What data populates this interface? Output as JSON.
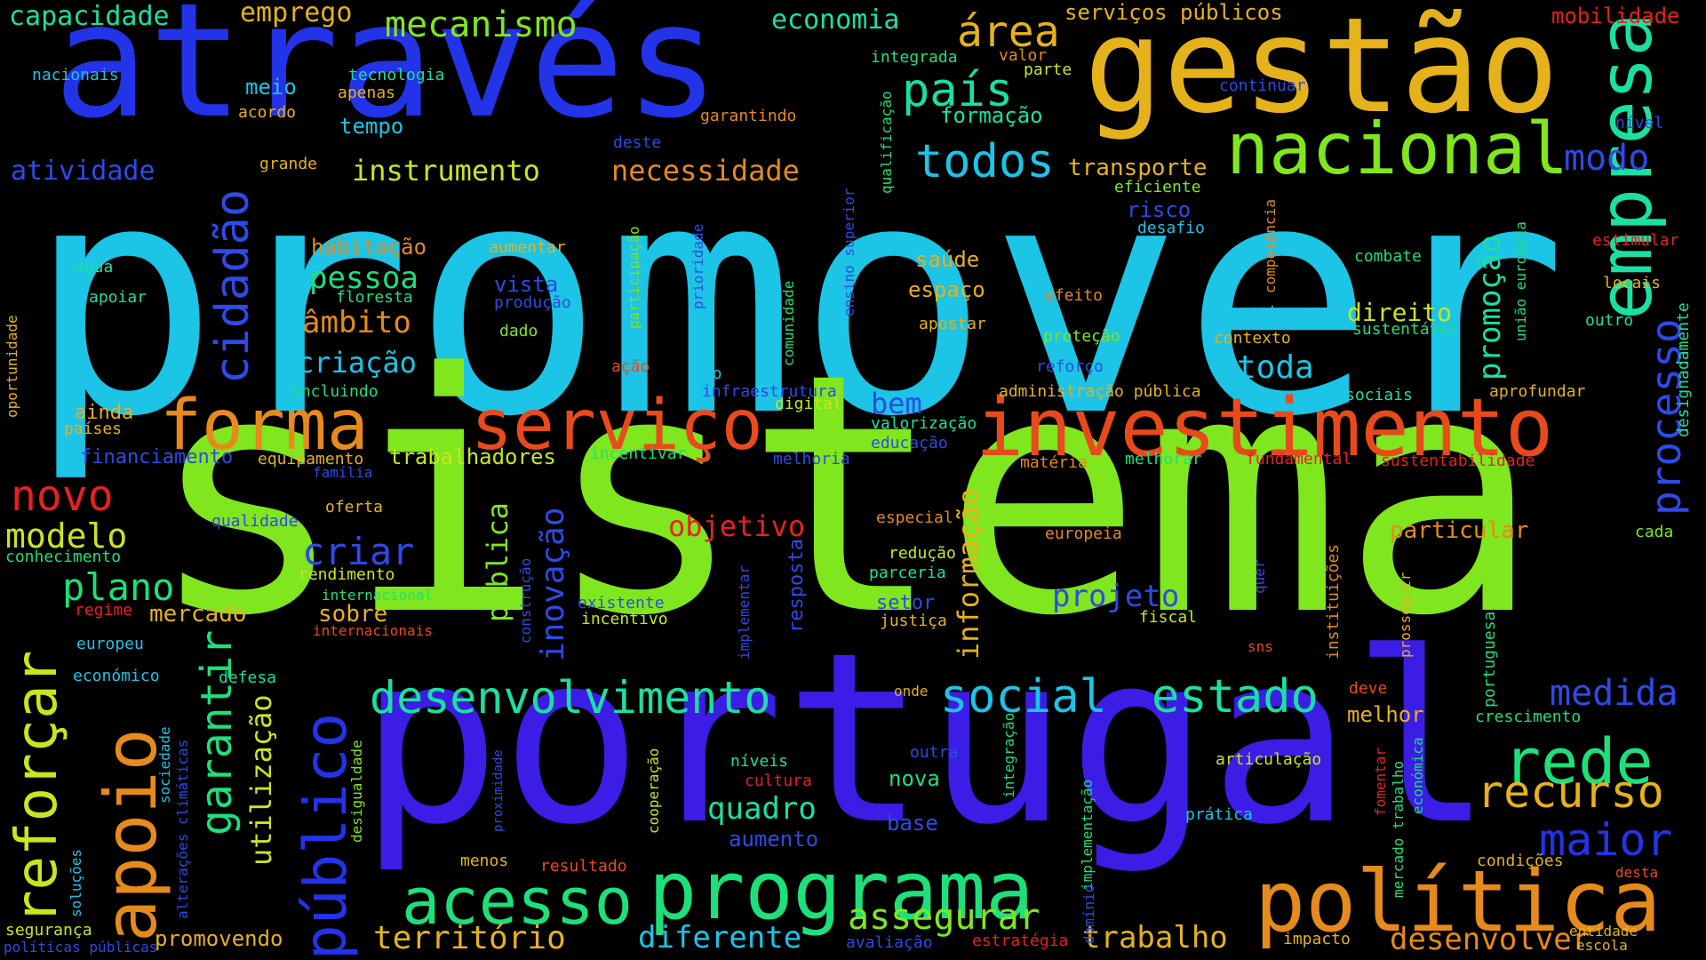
{
  "words": [
    {
      "text": "promover",
      "color": "#1cc4e6"
    },
    {
      "text": "sistema",
      "color": "#80e61e"
    },
    {
      "text": "portugal",
      "color": "#3b1de6"
    },
    {
      "text": "através",
      "color": "#2333e8"
    },
    {
      "text": "gestão",
      "color": "#e6b21c"
    },
    {
      "text": "investimento",
      "color": "#e84a1c"
    },
    {
      "text": "nacional",
      "color": "#80e61e"
    },
    {
      "text": "política",
      "color": "#e68a1c"
    },
    {
      "text": "programa",
      "color": "#1de07a"
    },
    {
      "text": "forma",
      "color": "#e68a1c"
    },
    {
      "text": "serviço",
      "color": "#e84a1c"
    },
    {
      "text": "empresa",
      "color": "#1ae0a0"
    },
    {
      "text": "apoio",
      "color": "#e68a1c"
    },
    {
      "text": "acesso",
      "color": "#1de07a"
    },
    {
      "text": "público",
      "color": "#2333e8"
    },
    {
      "text": "reforçar",
      "color": "#c8e61e"
    },
    {
      "text": "rede",
      "color": "#1de07a"
    },
    {
      "text": "desenvolvimento",
      "color": "#1ae0a0"
    },
    {
      "text": "todos",
      "color": "#1cc4e6"
    },
    {
      "text": "país",
      "color": "#1ae0a0"
    },
    {
      "text": "área",
      "color": "#e6b21c"
    },
    {
      "text": "social",
      "color": "#1cc4e6"
    },
    {
      "text": "estado",
      "color": "#1ae0a0"
    },
    {
      "text": "recurso",
      "color": "#e6b21c"
    },
    {
      "text": "maior",
      "color": "#2333e8"
    },
    {
      "text": "medida",
      "color": "#2e4ae8"
    },
    {
      "text": "cidadão",
      "color": "#2e4ae8"
    },
    {
      "text": "novo",
      "color": "#e82020"
    },
    {
      "text": "modelo",
      "color": "#c8e61e"
    },
    {
      "text": "garantir",
      "color": "#1de07a"
    },
    {
      "text": "assegurar",
      "color": "#80e61e"
    },
    {
      "text": "processo",
      "color": "#2e4ae8"
    },
    {
      "text": "território",
      "color": "#e6b21c"
    },
    {
      "text": "desenvolver",
      "color": "#e68a1c"
    },
    {
      "text": "mecanismo",
      "color": "#80e61e"
    },
    {
      "text": "plano",
      "color": "#1de07a"
    },
    {
      "text": "modo",
      "color": "#2e4ae8"
    },
    {
      "text": "instrumento",
      "color": "#c8e61e"
    },
    {
      "text": "necessidade",
      "color": "#e68a1c"
    },
    {
      "text": "inovação",
      "color": "#2e4ae8"
    },
    {
      "text": "criar",
      "color": "#2e4ae8"
    },
    {
      "text": "projeto",
      "color": "#2e4ae8"
    },
    {
      "text": "quadro",
      "color": "#1ae0a0"
    },
    {
      "text": "utilização",
      "color": "#c8e61e"
    },
    {
      "text": "trabalho",
      "color": "#e6b21c"
    },
    {
      "text": "diferente",
      "color": "#1cc4e6"
    },
    {
      "text": "capacidade",
      "color": "#1ae0a0"
    },
    {
      "text": "emprego",
      "color": "#e6b21c"
    },
    {
      "text": "economia",
      "color": "#1ae0a0"
    },
    {
      "text": "serviços públicos",
      "color": "#e6b21c"
    },
    {
      "text": "mobilidade",
      "color": "#e82020"
    },
    {
      "text": "atividade",
      "color": "#2e4ae8"
    },
    {
      "text": "pessoa",
      "color": "#1de07a"
    },
    {
      "text": "âmbito",
      "color": "#e68a1c"
    },
    {
      "text": "criação",
      "color": "#1cc4e6"
    },
    {
      "text": "habitação",
      "color": "#e68a1c"
    },
    {
      "text": "promoção",
      "color": "#1ae0a0"
    },
    {
      "text": "toda",
      "color": "#1cc4e6"
    },
    {
      "text": "direito",
      "color": "#c8e61e"
    },
    {
      "text": "transporte",
      "color": "#e6b21c"
    },
    {
      "text": "informação",
      "color": "#e6b21c"
    },
    {
      "text": "objetivo",
      "color": "#e82020"
    },
    {
      "text": "pública",
      "color": "#80e61e"
    },
    {
      "text": "bem",
      "color": "#2e4ae8"
    },
    {
      "text": "ainda",
      "color": "#e6b21c"
    },
    {
      "text": "trabalhadores",
      "color": "#c8e61e"
    },
    {
      "text": "financiamento",
      "color": "#2e4ae8"
    },
    {
      "text": "mercado",
      "color": "#e6b21c"
    },
    {
      "text": "sobre",
      "color": "#e6b21c"
    },
    {
      "text": "particular",
      "color": "#e68a1c"
    },
    {
      "text": "melhor",
      "color": "#e6b21c"
    },
    {
      "text": "nova",
      "color": "#1de07a"
    },
    {
      "text": "aumento",
      "color": "#2e4ae8"
    },
    {
      "text": "base",
      "color": "#2e4ae8"
    },
    {
      "text": "promovendo",
      "color": "#e6b21c"
    },
    {
      "text": "tempo",
      "color": "#1cc4e6"
    },
    {
      "text": "meio",
      "color": "#1cc4e6"
    },
    {
      "text": "formação",
      "color": "#1ae0a0"
    },
    {
      "text": "saúde",
      "color": "#e6b21c"
    },
    {
      "text": "espaço",
      "color": "#e6b21c"
    },
    {
      "text": "vista",
      "color": "#2e4ae8"
    },
    {
      "text": "setor",
      "color": "#2e4ae8"
    },
    {
      "text": "resposta",
      "color": "#2e4ae8"
    },
    {
      "text": "risco",
      "color": "#2e4ae8"
    },
    {
      "text": "nacionais",
      "color": "#1cc4e6"
    },
    {
      "text": "tecnologia",
      "color": "#1ae0a0"
    },
    {
      "text": "apenas",
      "color": "#e6b21c"
    },
    {
      "text": "acordo",
      "color": "#e6b21c"
    },
    {
      "text": "integrada",
      "color": "#1de07a"
    },
    {
      "text": "valor",
      "color": "#e68a1c"
    },
    {
      "text": "parte",
      "color": "#c8e61e"
    },
    {
      "text": "continuar",
      "color": "#2e4ae8"
    },
    {
      "text": "nível",
      "color": "#2e4ae8"
    },
    {
      "text": "garantindo",
      "color": "#e68a1c"
    },
    {
      "text": "qualificação",
      "color": "#1de07a"
    },
    {
      "text": "deste",
      "color": "#2e4ae8"
    },
    {
      "text": "grande",
      "color": "#e6b21c"
    },
    {
      "text": "eficiente",
      "color": "#80e61e"
    },
    {
      "text": "desafio",
      "color": "#1cc4e6"
    },
    {
      "text": "competência",
      "color": "#e68a1c"
    },
    {
      "text": "ensino superior",
      "color": "#2e4ae8"
    },
    {
      "text": "participação",
      "color": "#80e61e"
    },
    {
      "text": "prioridade",
      "color": "#2e4ae8"
    },
    {
      "text": "comunidade",
      "color": "#1de07a"
    },
    {
      "text": "aumentar",
      "color": "#e6b21c"
    },
    {
      "text": "água",
      "color": "#1ae0a0"
    },
    {
      "text": "apoiar",
      "color": "#1ae0a0"
    },
    {
      "text": "floresta",
      "color": "#1de07a"
    },
    {
      "text": "produção",
      "color": "#2e4ae8"
    },
    {
      "text": "dado",
      "color": "#80e61e"
    },
    {
      "text": "combate",
      "color": "#1de07a"
    },
    {
      "text": "estimular",
      "color": "#e82020"
    },
    {
      "text": "designadamente",
      "color": "#1ae0a0"
    },
    {
      "text": "locais",
      "color": "#e6b21c"
    },
    {
      "text": "união europeia",
      "color": "#1de07a"
    },
    {
      "text": "outro",
      "color": "#1ae0a0"
    },
    {
      "text": "efeito",
      "color": "#e68a1c"
    },
    {
      "text": "aposta",
      "color": "#1cc4e6"
    },
    {
      "text": "sustentável",
      "color": "#1de07a"
    },
    {
      "text": "apostar",
      "color": "#e6b21c"
    },
    {
      "text": "proteção",
      "color": "#80e61e"
    },
    {
      "text": "contexto",
      "color": "#e6b21c"
    },
    {
      "text": "oportunidade",
      "color": "#e6b21c"
    },
    {
      "text": "incluindo",
      "color": "#1de07a"
    },
    {
      "text": "ação",
      "color": "#e84a1c"
    },
    {
      "text": "uso",
      "color": "#1cc4e6"
    },
    {
      "text": "reforço",
      "color": "#2e4ae8"
    },
    {
      "text": "infraestrutura",
      "color": "#2e4ae8"
    },
    {
      "text": "administração pública",
      "color": "#e6b21c"
    },
    {
      "text": "sociais",
      "color": "#1ae0a0"
    },
    {
      "text": "aprofundar",
      "color": "#e6b21c"
    },
    {
      "text": "países",
      "color": "#e6b21c"
    },
    {
      "text": "digital",
      "color": "#c8e61e"
    },
    {
      "text": "valorização",
      "color": "#1ae0a0"
    },
    {
      "text": "equipamento",
      "color": "#e6b21c"
    },
    {
      "text": "incentivar",
      "color": "#1de07a"
    },
    {
      "text": "educação",
      "color": "#2e4ae8"
    },
    {
      "text": "melhoria",
      "color": "#2e4ae8"
    },
    {
      "text": "matéria",
      "color": "#e68a1c"
    },
    {
      "text": "melhorar",
      "color": "#1de07a"
    },
    {
      "text": "fundamental",
      "color": "#e82020"
    },
    {
      "text": "sustentabilidade",
      "color": "#e82020"
    },
    {
      "text": "família",
      "color": "#2e4ae8"
    },
    {
      "text": "oferta",
      "color": "#e6b21c"
    },
    {
      "text": "qualidade",
      "color": "#2e4ae8"
    },
    {
      "text": "especial",
      "color": "#e68a1c"
    },
    {
      "text": "europeia",
      "color": "#e68a1c"
    },
    {
      "text": "cada",
      "color": "#80e61e"
    },
    {
      "text": "conhecimento",
      "color": "#1de07a"
    },
    {
      "text": "rendimento",
      "color": "#c8e61e"
    },
    {
      "text": "redução",
      "color": "#c8e61e"
    },
    {
      "text": "parceria",
      "color": "#1ae0a0"
    },
    {
      "text": "instituições",
      "color": "#e68a1c"
    },
    {
      "text": "prosseguir",
      "color": "#e6b21c"
    },
    {
      "text": "internacional",
      "color": "#1de07a"
    },
    {
      "text": "regime",
      "color": "#e82020"
    },
    {
      "text": "existente",
      "color": "#2e4ae8"
    },
    {
      "text": "incentivo",
      "color": "#c8e61e"
    },
    {
      "text": "justiça",
      "color": "#e6b21c"
    },
    {
      "text": "fiscal",
      "color": "#c8e61e"
    },
    {
      "text": "internacionais",
      "color": "#e84a1c"
    },
    {
      "text": "construção",
      "color": "#2e4ae8"
    },
    {
      "text": "implementar",
      "color": "#2e4ae8"
    },
    {
      "text": "quer",
      "color": "#2e4ae8"
    },
    {
      "text": "europeu",
      "color": "#1cc4e6"
    },
    {
      "text": "sns",
      "color": "#e84a1c"
    },
    {
      "text": "portuguesa",
      "color": "#1de07a"
    },
    {
      "text": "económico",
      "color": "#1cc4e6"
    },
    {
      "text": "defesa",
      "color": "#1ae0a0"
    },
    {
      "text": "onde",
      "color": "#e6b21c"
    },
    {
      "text": "deve",
      "color": "#e84a1c"
    },
    {
      "text": "crescimento",
      "color": "#1de07a"
    },
    {
      "text": "sociedade",
      "color": "#1cc4e6"
    },
    {
      "text": "alterações climáticas",
      "color": "#2e4ae8"
    },
    {
      "text": "desigualdade",
      "color": "#80e61e"
    },
    {
      "text": "proximidade",
      "color": "#2e4ae8"
    },
    {
      "text": "cooperação",
      "color": "#c8e61e"
    },
    {
      "text": "níveis",
      "color": "#1ae0a0"
    },
    {
      "text": "cultura",
      "color": "#e82020"
    },
    {
      "text": "outra",
      "color": "#2e4ae8"
    },
    {
      "text": "integração",
      "color": "#1de07a"
    },
    {
      "text": "implementação",
      "color": "#1de07a"
    },
    {
      "text": "articulação",
      "color": "#c8e61e"
    },
    {
      "text": "mercado trabalho",
      "color": "#1de07a"
    },
    {
      "text": "económica",
      "color": "#1de07a"
    },
    {
      "text": "fomentar",
      "color": "#e82020"
    },
    {
      "text": "soluções",
      "color": "#1cc4e6"
    },
    {
      "text": "prática",
      "color": "#1cc4e6"
    },
    {
      "text": "menos",
      "color": "#e6b21c"
    },
    {
      "text": "resultado",
      "color": "#e84a1c"
    },
    {
      "text": "domínio",
      "color": "#2e4ae8"
    },
    {
      "text": "condições",
      "color": "#e6b21c"
    },
    {
      "text": "desta",
      "color": "#e84a1c"
    },
    {
      "text": "segurança",
      "color": "#c8e61e"
    },
    {
      "text": "avaliação",
      "color": "#2e4ae8"
    },
    {
      "text": "estratégia",
      "color": "#e82020"
    },
    {
      "text": "impacto",
      "color": "#e6b21c"
    },
    {
      "text": "entidade",
      "color": "#e6b21c"
    },
    {
      "text": "escola",
      "color": "#e6b21c"
    },
    {
      "text": "políticas públicas",
      "color": "#2e4ae8"
    }
  ]
}
